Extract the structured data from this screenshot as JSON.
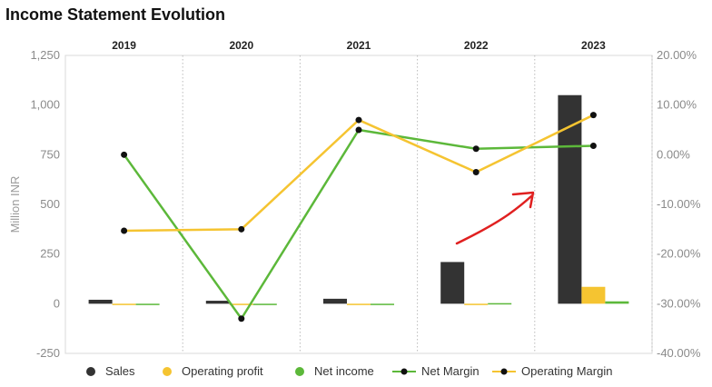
{
  "chart_data": {
    "type": "bar",
    "title": "Income Statement Evolution",
    "categories": [
      "2019",
      "2020",
      "2021",
      "2022",
      "2023"
    ],
    "ylabel": "Million INR",
    "ylim": [
      -250,
      1250
    ],
    "y_ticks": [
      "1,250",
      "1,000",
      "750",
      "500",
      "250",
      "0",
      "-250"
    ],
    "y2lim": [
      -40,
      20
    ],
    "y2_ticks": [
      "20.00%",
      "10.00%",
      "0.00%",
      "-10.00%",
      "-20.00%",
      "-30.00%",
      "-40.00%"
    ],
    "grid": "vertical dotted",
    "legend_position": "bottom",
    "series": [
      {
        "name": "Sales",
        "kind": "bar",
        "axis": "left",
        "color": "#333333",
        "values": [
          20,
          15,
          25,
          210,
          1050
        ]
      },
      {
        "name": "Operating profit",
        "kind": "bar",
        "axis": "left",
        "color": "#f5c431",
        "values": [
          0,
          0,
          0,
          -3,
          85
        ]
      },
      {
        "name": "Net income",
        "kind": "bar",
        "axis": "left",
        "color": "#5cb83a",
        "values": [
          0,
          -5,
          0,
          3,
          12
        ]
      },
      {
        "name": "Net Margin",
        "kind": "line",
        "axis": "right",
        "color": "#5cb83a",
        "values": [
          0,
          -33,
          5,
          1.2,
          1.8
        ]
      },
      {
        "name": "Operating Margin",
        "kind": "line",
        "axis": "right",
        "color": "#f5c431",
        "values": [
          -15.3,
          -15,
          7,
          -3.5,
          8
        ]
      }
    ],
    "annotation": {
      "kind": "red arrow",
      "color": "#e02020",
      "description": "hand-drawn arrow pointing up toward 2023"
    }
  }
}
